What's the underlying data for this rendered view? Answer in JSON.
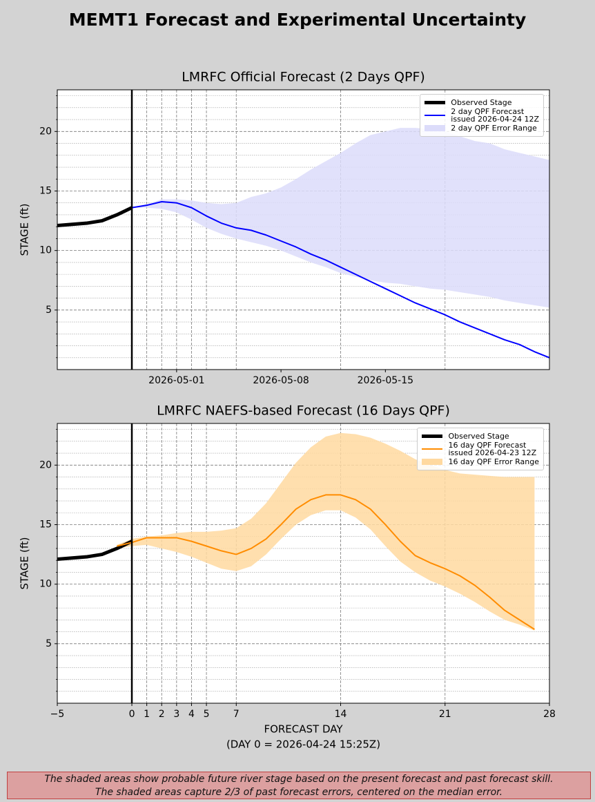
{
  "title": "MEMT1 Forecast and Experimental Uncertainty",
  "note": [
    "The shaded areas show probable future river stage based on the present forecast and past forecast skill.",
    "The shaded areas capture 2/3 of past forecast errors, centered on the median error."
  ],
  "chart_data": [
    {
      "type": "line",
      "title": "LMRFC Official Forecast (2 Days QPF)",
      "y_label": "STAGE (ft)",
      "xlim": [
        -5,
        28
      ],
      "ylim": [
        0,
        23.5
      ],
      "xticks": [
        {
          "value": 3,
          "label": "2026-05-01"
        },
        {
          "value": 10,
          "label": "2026-05-08"
        },
        {
          "value": 17,
          "label": "2026-05-15"
        }
      ],
      "xgrid": [
        1,
        2,
        3,
        4,
        5,
        7,
        14,
        21
      ],
      "now_x": 0,
      "yticks": [
        5,
        10,
        15,
        20
      ],
      "yminor": [
        1,
        2,
        3,
        4,
        6,
        7,
        8,
        9,
        11,
        12,
        13,
        14,
        16,
        17,
        18,
        19,
        21,
        22,
        23
      ],
      "grid": true,
      "legend": "upper right",
      "series": [
        {
          "name": "Observed Stage",
          "kind": "line",
          "color": "#000000",
          "linewidth": 5,
          "x": [
            -5,
            -4,
            -3,
            -2,
            -1,
            0
          ],
          "values": [
            12.1,
            12.2,
            12.3,
            12.5,
            13.0,
            13.6
          ]
        },
        {
          "name": "2 day QPF Forecast\nissued 2026-04-24 12Z",
          "kind": "line",
          "color": "#0000ff",
          "linewidth": 2,
          "x": [
            0,
            1,
            2,
            3,
            4,
            5,
            6,
            7,
            8,
            9,
            10,
            11,
            12,
            13,
            14,
            15,
            16,
            17,
            18,
            19,
            20,
            21,
            22,
            23,
            24,
            25,
            26,
            27,
            28
          ],
          "values": [
            13.6,
            13.8,
            14.1,
            14.0,
            13.6,
            12.9,
            12.3,
            11.9,
            11.7,
            11.3,
            10.8,
            10.3,
            9.7,
            9.2,
            8.6,
            8.0,
            7.4,
            6.8,
            6.2,
            5.6,
            5.1,
            4.6,
            4.0,
            3.5,
            3.0,
            2.5,
            2.1,
            1.5,
            1.0
          ]
        },
        {
          "name": "2 day QPF Error Range",
          "kind": "band",
          "color": "#dcdcfa",
          "x": [
            0,
            1,
            2,
            3,
            4,
            5,
            6,
            7,
            8,
            9,
            10,
            11,
            12,
            13,
            14,
            15,
            16,
            17,
            18,
            19,
            20,
            21,
            22,
            23,
            24,
            25,
            26,
            27,
            28
          ],
          "lower": [
            13.6,
            13.6,
            13.5,
            13.2,
            12.6,
            11.9,
            11.4,
            11.0,
            10.7,
            10.4,
            10.0,
            9.5,
            9.0,
            8.6,
            8.1,
            7.8,
            7.5,
            7.3,
            7.2,
            7.0,
            6.8,
            6.7,
            6.5,
            6.3,
            6.1,
            5.8,
            5.6,
            5.4,
            5.2
          ],
          "upper": [
            13.6,
            13.9,
            14.3,
            14.3,
            14.2,
            14.0,
            13.9,
            14.0,
            14.5,
            14.8,
            15.3,
            16.0,
            16.8,
            17.5,
            18.2,
            19.0,
            19.7,
            20.0,
            20.3,
            20.3,
            20.2,
            20.0,
            19.6,
            19.2,
            19.0,
            18.5,
            18.2,
            17.9,
            17.6
          ]
        }
      ]
    },
    {
      "type": "line",
      "title": "LMRFC NAEFS-based Forecast (16 Days QPF)",
      "y_label": "STAGE (ft)",
      "x_label": "FORECAST DAY",
      "x_sublabel": "(DAY 0 = 2026-04-24 15:25Z)",
      "xlim": [
        -5,
        28
      ],
      "ylim": [
        0,
        23.5
      ],
      "xticks": [
        {
          "value": -5,
          "label": "−5"
        },
        0,
        1,
        2,
        3,
        4,
        5,
        7,
        14,
        21,
        28
      ],
      "xgrid": [
        1,
        2,
        3,
        4,
        5,
        7,
        14,
        21
      ],
      "now_x": 0,
      "yticks": [
        5,
        10,
        15,
        20
      ],
      "yminor": [
        1,
        2,
        3,
        4,
        6,
        7,
        8,
        9,
        11,
        12,
        13,
        14,
        16,
        17,
        18,
        19,
        21,
        22,
        23
      ],
      "grid": true,
      "legend": "upper right",
      "series": [
        {
          "name": "Observed Stage",
          "kind": "line",
          "color": "#000000",
          "linewidth": 5,
          "x": [
            -5,
            -4,
            -3,
            -2,
            -1,
            0
          ],
          "values": [
            12.1,
            12.2,
            12.3,
            12.5,
            13.0,
            13.6
          ]
        },
        {
          "name": "16 day QPF Forecast\nissued 2026-04-23 12Z",
          "kind": "line",
          "color": "#ff8c00",
          "linewidth": 2,
          "x": [
            -1,
            0,
            1,
            2,
            3,
            4,
            5,
            6,
            7,
            8,
            9,
            10,
            11,
            12,
            13,
            14,
            15,
            16,
            17,
            18,
            19,
            20,
            21,
            22,
            23,
            24,
            25,
            26,
            27
          ],
          "values": [
            13.2,
            13.5,
            13.9,
            13.9,
            13.9,
            13.6,
            13.2,
            12.8,
            12.5,
            13.0,
            13.8,
            15.0,
            16.3,
            17.1,
            17.5,
            17.5,
            17.1,
            16.3,
            15.0,
            13.6,
            12.4,
            11.8,
            11.3,
            10.7,
            9.9,
            8.9,
            7.8,
            7.0,
            6.2
          ]
        },
        {
          "name": "16 day QPF Error Range",
          "kind": "band",
          "color": "#ffd9a0",
          "x": [
            -1,
            0,
            1,
            2,
            3,
            4,
            5,
            6,
            7,
            8,
            9,
            10,
            11,
            12,
            13,
            14,
            15,
            16,
            17,
            18,
            19,
            20,
            21,
            22,
            23,
            24,
            25,
            26,
            27
          ],
          "lower": [
            13.0,
            13.2,
            13.3,
            13.0,
            12.7,
            12.3,
            11.8,
            11.3,
            11.1,
            11.5,
            12.5,
            13.8,
            15.0,
            15.8,
            16.2,
            16.2,
            15.6,
            14.6,
            13.2,
            11.9,
            11.0,
            10.3,
            9.8,
            9.2,
            8.5,
            7.7,
            7.0,
            6.6,
            6.1
          ],
          "upper": [
            13.3,
            13.8,
            14.0,
            14.1,
            14.3,
            14.4,
            14.4,
            14.5,
            14.7,
            15.5,
            16.8,
            18.5,
            20.2,
            21.5,
            22.4,
            22.7,
            22.6,
            22.3,
            21.8,
            21.2,
            20.5,
            20.0,
            19.6,
            19.3,
            19.2,
            19.1,
            19.0,
            19.0,
            19.0
          ]
        }
      ]
    }
  ]
}
